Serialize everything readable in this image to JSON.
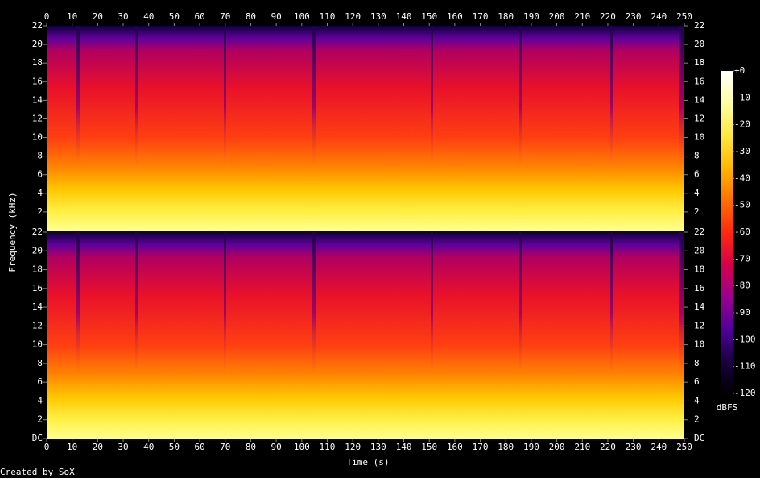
{
  "chart_data": {
    "type": "spectrogram",
    "x_label": "Time (s)",
    "y_label": "Frequency (kHz)",
    "xlim": [
      0,
      250
    ],
    "xticks": [
      0,
      10,
      20,
      30,
      40,
      50,
      60,
      70,
      80,
      90,
      100,
      110,
      120,
      130,
      140,
      150,
      160,
      170,
      180,
      190,
      200,
      210,
      220,
      230,
      240,
      250
    ],
    "ylim": [
      0,
      22
    ],
    "channels": [
      {
        "yticks": [
          2,
          4,
          6,
          8,
          10,
          12,
          14,
          16,
          18,
          20,
          22
        ]
      },
      {
        "yticks": [
          {
            "value": 0,
            "label": "DC"
          },
          2,
          4,
          6,
          8,
          10,
          12,
          14,
          16,
          18,
          20,
          22
        ]
      }
    ],
    "zlim": [
      -120,
      0
    ],
    "zticks": [
      {
        "value": 0,
        "label": "+0"
      },
      -10,
      -20,
      -30,
      -40,
      -50,
      -60,
      -70,
      -80,
      -90,
      -100,
      -110,
      -120
    ],
    "colorbar_label": "dBFS",
    "colormap": [
      "#000000",
      "#1a0040",
      "#50009a",
      "#9a0090",
      "#d8004a",
      "#ff2a10",
      "#ff7000",
      "#ffb800",
      "#ffe840",
      "#ffffa0",
      "#ffffff"
    ],
    "credit": "Created by SoX"
  }
}
